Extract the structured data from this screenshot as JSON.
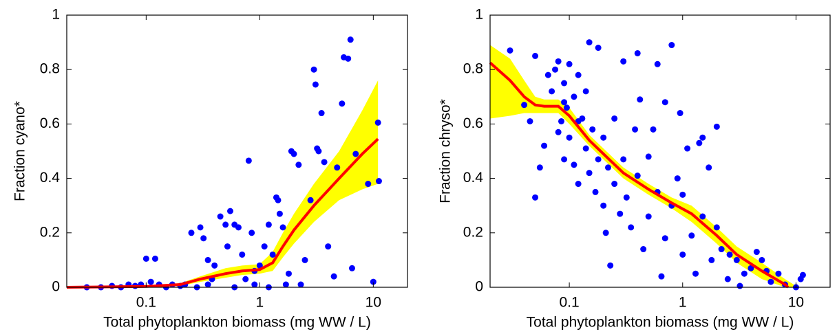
{
  "chart_data": [
    {
      "type": "scatter",
      "xlabel": "Total phytoplankton biomass (mg WW / L)",
      "ylabel": "Fraction cyano*",
      "xscale": "log",
      "xlim": [
        0.02,
        20
      ],
      "ylim": [
        0,
        1
      ],
      "xticks": [
        0.1,
        1,
        10
      ],
      "yticks": [
        0,
        0.2,
        0.4,
        0.6,
        0.8,
        1
      ],
      "points": {
        "color": "#0000ff",
        "x": [
          0.03,
          0.04,
          0.05,
          0.06,
          0.07,
          0.08,
          0.09,
          0.1,
          0.12,
          0.11,
          0.13,
          0.15,
          0.17,
          0.2,
          0.22,
          0.25,
          0.3,
          0.32,
          0.35,
          0.38,
          0.4,
          0.45,
          0.5,
          0.52,
          0.55,
          0.6,
          0.65,
          0.7,
          0.75,
          0.8,
          0.85,
          0.9,
          1.0,
          1.1,
          1.2,
          1.3,
          1.4,
          1.45,
          1.5,
          1.6,
          1.7,
          1.8,
          1.9,
          2.0,
          2.2,
          2.5,
          2.8,
          3.0,
          3.1,
          3.2,
          3.3,
          3.5,
          3.7,
          4.0,
          4.5,
          4.8,
          5.3,
          5.5,
          6,
          6.3,
          6.5,
          7.0,
          9,
          10,
          11,
          11.2,
          0.6,
          1.2,
          2.3,
          0.9,
          0.35,
          0.28
        ],
        "y": [
          0,
          0,
          0.005,
          0,
          0.01,
          0.005,
          0.01,
          0.105,
          0.105,
          0.02,
          0.01,
          0,
          0.01,
          0.005,
          0.01,
          0.2,
          0.22,
          0.18,
          0.1,
          0.03,
          0.08,
          0.26,
          0.23,
          0.15,
          0.28,
          0.23,
          0.22,
          0.12,
          0.03,
          0.465,
          0.2,
          0.01,
          0.08,
          0.15,
          0.23,
          0.12,
          0.33,
          0.32,
          0.27,
          0.22,
          0.01,
          0.05,
          0.5,
          0.49,
          0.45,
          0.1,
          0.32,
          0.8,
          0.745,
          0.51,
          0.5,
          0.64,
          0.46,
          0.15,
          0.04,
          0.44,
          0.675,
          0.845,
          0.84,
          0.91,
          0.07,
          0.49,
          0.38,
          0.02,
          0.605,
          0.39,
          0,
          0,
          0.01,
          0.06,
          0.01,
          0
        ]
      },
      "band": {
        "color": "#ffff00",
        "x": [
          0.02,
          0.1,
          0.2,
          0.3,
          0.5,
          0.7,
          1,
          1.3,
          1.6,
          2,
          3,
          5,
          8,
          11
        ],
        "lower": [
          0,
          0,
          0.005,
          0.02,
          0.035,
          0.045,
          0.05,
          0.06,
          0.11,
          0.16,
          0.24,
          0.32,
          0.36,
          0.38
        ],
        "upper": [
          0,
          0.006,
          0.015,
          0.04,
          0.07,
          0.08,
          0.085,
          0.13,
          0.2,
          0.27,
          0.38,
          0.5,
          0.65,
          0.76
        ]
      },
      "line": {
        "color": "#ff0000",
        "x": [
          0.02,
          0.1,
          0.2,
          0.3,
          0.5,
          0.7,
          1.0,
          1.3,
          1.6,
          2,
          3,
          5,
          8,
          11
        ],
        "y": [
          0,
          0.003,
          0.01,
          0.03,
          0.05,
          0.06,
          0.065,
          0.09,
          0.15,
          0.21,
          0.3,
          0.4,
          0.49,
          0.545
        ]
      }
    },
    {
      "type": "scatter",
      "xlabel": "Total phytoplankton biomass (mg WW / L)",
      "ylabel": "Fraction chryso*",
      "xscale": "log",
      "xlim": [
        0.02,
        20
      ],
      "ylim": [
        0,
        1
      ],
      "xticks": [
        0.1,
        1,
        10
      ],
      "yticks": [
        0,
        0.2,
        0.4,
        0.6,
        0.8,
        1
      ],
      "points": {
        "color": "#0000ff",
        "x": [
          0.03,
          0.04,
          0.045,
          0.05,
          0.05,
          0.055,
          0.06,
          0.065,
          0.07,
          0.075,
          0.08,
          0.08,
          0.085,
          0.09,
          0.09,
          0.095,
          0.1,
          0.1,
          0.11,
          0.11,
          0.12,
          0.12,
          0.13,
          0.14,
          0.15,
          0.15,
          0.16,
          0.17,
          0.18,
          0.18,
          0.2,
          0.2,
          0.21,
          0.22,
          0.23,
          0.25,
          0.25,
          0.28,
          0.3,
          0.3,
          0.32,
          0.35,
          0.38,
          0.4,
          0.4,
          0.42,
          0.45,
          0.5,
          0.5,
          0.55,
          0.6,
          0.6,
          0.65,
          0.7,
          0.7,
          0.8,
          0.8,
          0.9,
          0.95,
          1.0,
          1.0,
          1.1,
          1.2,
          1.3,
          1.4,
          1.5,
          1.5,
          1.7,
          1.8,
          2.0,
          2.0,
          2.2,
          2.5,
          2.6,
          3.0,
          3.2,
          3.5,
          4.0,
          4.5,
          5,
          5.5,
          6,
          7,
          8,
          10,
          11,
          11.5,
          0.12,
          0.14,
          0.09
        ],
        "y": [
          0.87,
          0.67,
          0.61,
          0.85,
          0.33,
          0.44,
          0.52,
          0.78,
          0.72,
          0.8,
          0.83,
          0.57,
          0.61,
          0.75,
          0.47,
          0.66,
          0.82,
          0.55,
          0.7,
          0.45,
          0.78,
          0.38,
          0.62,
          0.51,
          0.9,
          0.42,
          0.58,
          0.35,
          0.88,
          0.47,
          0.55,
          0.3,
          0.2,
          0.44,
          0.08,
          0.62,
          0.38,
          0.27,
          0.83,
          0.47,
          0.33,
          0.22,
          0.58,
          0.86,
          0.41,
          0.69,
          0.14,
          0.48,
          0.26,
          0.58,
          0.82,
          0.35,
          0.04,
          0.68,
          0.18,
          0.89,
          0.3,
          0.4,
          0.64,
          0.12,
          0.34,
          0.51,
          0.19,
          0.05,
          0.53,
          0.55,
          0.26,
          0.44,
          0.1,
          0.59,
          0.22,
          0.14,
          0.03,
          0.12,
          0.1,
          0.005,
          0.05,
          0.07,
          0.13,
          0.1,
          0.06,
          0.02,
          0.05,
          0.01,
          0,
          0.03,
          0.045,
          0.61,
          0.72,
          0.68
        ]
      },
      "band": {
        "color": "#ffff00",
        "x": [
          0.02,
          0.03,
          0.04,
          0.05,
          0.06,
          0.08,
          0.1,
          0.15,
          0.2,
          0.3,
          0.5,
          0.8,
          1.2,
          2,
          3,
          5,
          8,
          10
        ],
        "lower": [
          0.62,
          0.63,
          0.64,
          0.64,
          0.64,
          0.64,
          0.6,
          0.52,
          0.47,
          0.4,
          0.34,
          0.29,
          0.24,
          0.16,
          0.09,
          0.03,
          0,
          0
        ],
        "upper": [
          0.89,
          0.84,
          0.76,
          0.7,
          0.69,
          0.69,
          0.66,
          0.56,
          0.51,
          0.44,
          0.38,
          0.33,
          0.3,
          0.22,
          0.15,
          0.09,
          0.03,
          0.005
        ]
      },
      "line": {
        "color": "#ff0000",
        "x": [
          0.02,
          0.03,
          0.04,
          0.05,
          0.06,
          0.08,
          0.1,
          0.15,
          0.2,
          0.3,
          0.5,
          0.8,
          1.2,
          2,
          3,
          5,
          8,
          8.5
        ],
        "y": [
          0.825,
          0.76,
          0.7,
          0.67,
          0.665,
          0.665,
          0.63,
          0.54,
          0.49,
          0.42,
          0.36,
          0.31,
          0.27,
          0.19,
          0.12,
          0.06,
          0.01,
          0
        ]
      }
    }
  ]
}
